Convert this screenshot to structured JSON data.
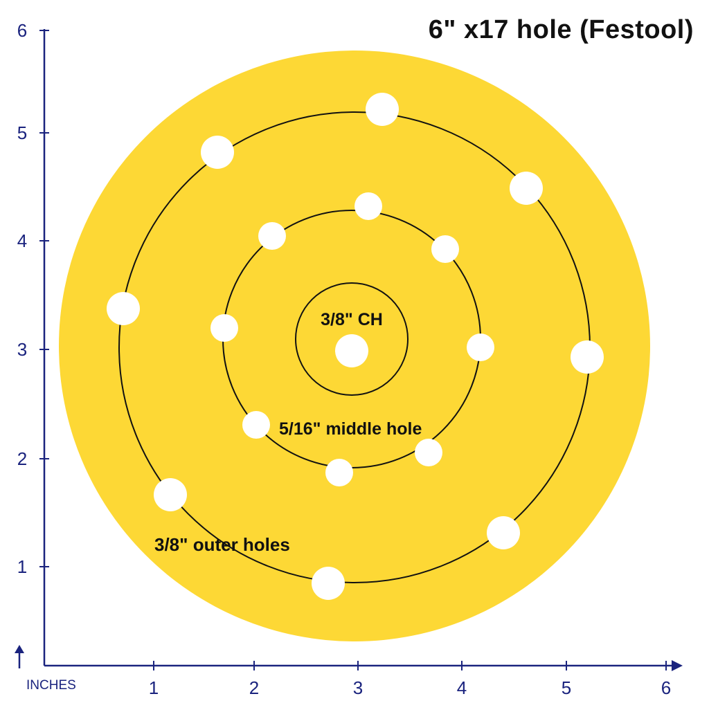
{
  "title": "6\" x17 hole (Festool)",
  "units_label": "INCHES",
  "colors": {
    "disc": "#fdd835",
    "axis": "#1a237e",
    "ring": "#111111",
    "hole": "#ffffff"
  },
  "axes": {
    "x_ticks": [
      "1",
      "2",
      "3",
      "4",
      "5",
      "6"
    ],
    "y_ticks": [
      "1",
      "2",
      "3",
      "4",
      "5",
      "6"
    ]
  },
  "labels": {
    "center_hole": "3/8\" CH",
    "middle_holes": "5/16\" middle hole",
    "outer_holes": "3/8\" outer holes"
  },
  "hole_counts": {
    "center": 1,
    "middle": 8,
    "outer": 8
  }
}
